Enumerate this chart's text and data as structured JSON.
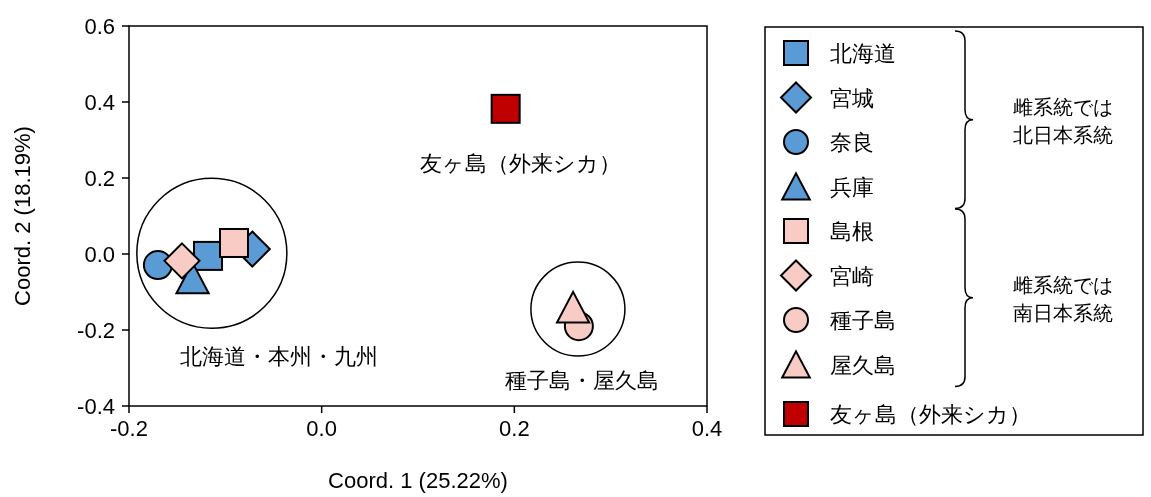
{
  "chart_data": {
    "type": "scatter",
    "xlabel": "Coord. 1 (25.22%)",
    "ylabel": "Coord. 2 (18.19%)",
    "xlim": [
      -0.2,
      0.4
    ],
    "xticks": [
      {
        "value": -0.2,
        "label": "-0.2"
      },
      {
        "value": 0,
        "label": "0.0"
      },
      {
        "value": 0.2,
        "label": "0.2"
      },
      {
        "value": 0.4,
        "label": "0.4"
      }
    ],
    "ylim": [
      -0.4,
      0.6
    ],
    "yticks": [
      {
        "value": -0.4,
        "label": "-0.4"
      },
      {
        "value": -0.2,
        "label": "-0.2"
      },
      {
        "value": 0,
        "label": "0.0"
      },
      {
        "value": 0.2,
        "label": "0.2"
      },
      {
        "value": 0.4,
        "label": "0.4"
      },
      {
        "value": 0.6,
        "label": "0.6"
      }
    ],
    "grid": false,
    "legend": "right",
    "series": [
      {
        "name": "北海道",
        "color": "#5b9bd5",
        "marker": "square",
        "x": [
          -0.118
        ],
        "values": [
          -0.005
        ]
      },
      {
        "name": "宮城",
        "color": "#5b9bd5",
        "marker": "diamond",
        "x": [
          -0.072
        ],
        "values": [
          0.013
        ]
      },
      {
        "name": "奈良",
        "color": "#5b9bd5",
        "marker": "circle",
        "x": [
          -0.17
        ],
        "values": [
          -0.029
        ]
      },
      {
        "name": "兵庫",
        "color": "#5b9bd5",
        "marker": "triangle",
        "x": [
          -0.134
        ],
        "values": [
          -0.063
        ]
      },
      {
        "name": "島根",
        "color": "#f8cbc5",
        "marker": "square",
        "x": [
          -0.091
        ],
        "values": [
          0.029
        ]
      },
      {
        "name": "宮崎",
        "color": "#f8cbc5",
        "marker": "diamond",
        "x": [
          -0.145
        ],
        "values": [
          -0.018
        ]
      },
      {
        "name": "種子島",
        "color": "#f8cbc5",
        "marker": "circle",
        "x": [
          0.267
        ],
        "values": [
          -0.19
        ]
      },
      {
        "name": "屋久島",
        "color": "#f8cbc5",
        "marker": "triangle",
        "x": [
          0.261
        ],
        "values": [
          -0.14
        ]
      },
      {
        "name": "友ヶ島（外来シカ）",
        "color": "#c00000",
        "marker": "square",
        "x": [
          0.191
        ],
        "values": [
          0.382
        ]
      }
    ],
    "annotations": [
      "北海道・本州・九州",
      "種子島・屋久島",
      "友ヶ島（外来シカ）",
      "雌系統では北日本系統",
      "雌系統では南日本系統"
    ]
  }
}
